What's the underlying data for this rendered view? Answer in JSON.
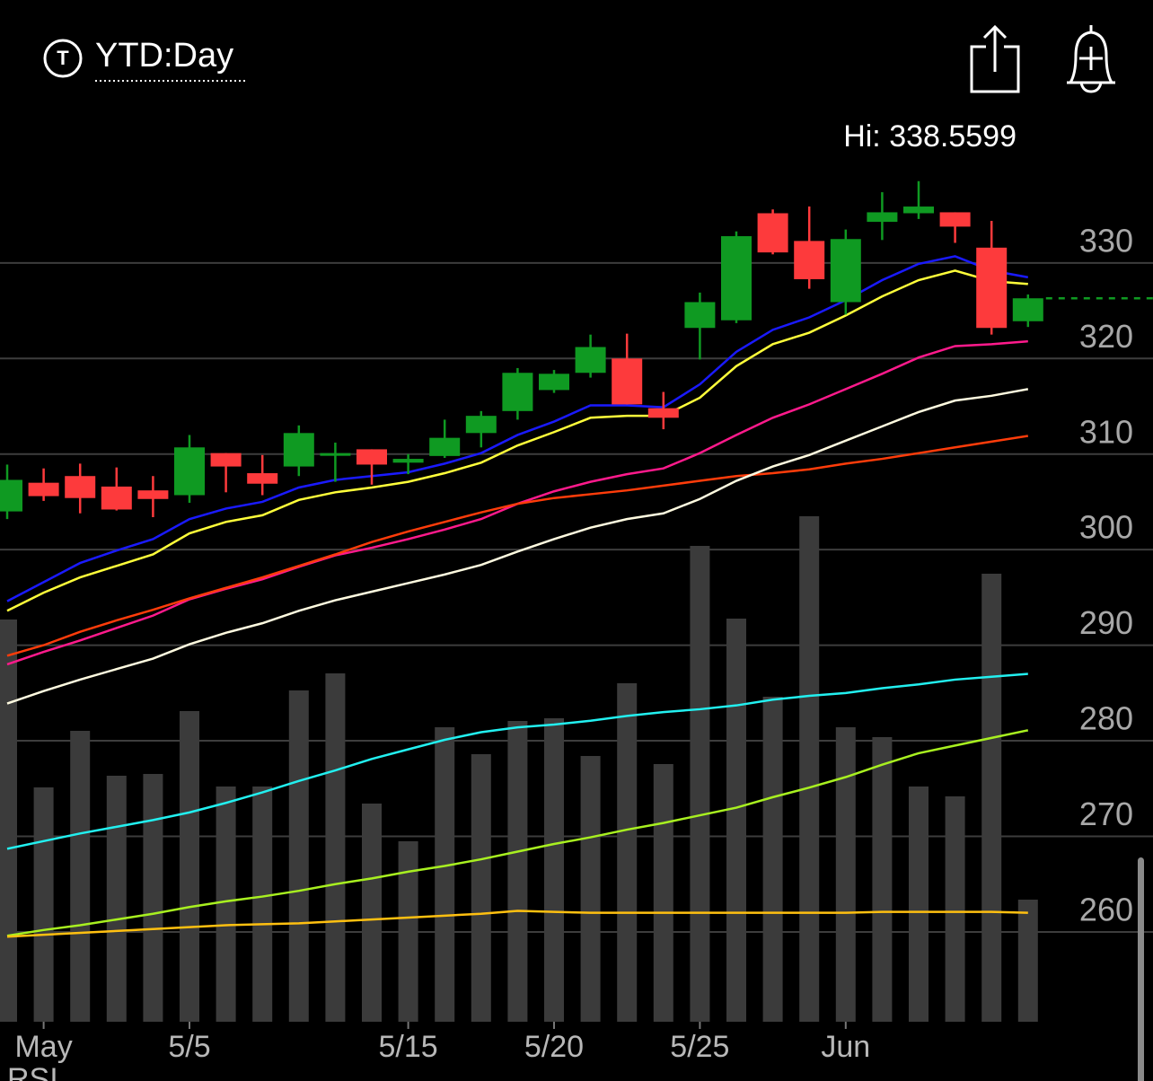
{
  "header": {
    "range": "YTD:Day"
  },
  "chart_data": {
    "type": "candlestick",
    "high_label": "Hi: 338.5599",
    "lower_panel_label": "RSI",
    "categories": [
      null,
      "May",
      null,
      null,
      null,
      "5/5",
      null,
      null,
      null,
      null,
      null,
      "5/15",
      null,
      null,
      null,
      "5/20",
      null,
      null,
      null,
      "5/25",
      null,
      null,
      null,
      "Jun",
      null,
      null,
      null,
      null,
      null
    ],
    "open": [
      304.0,
      307.0,
      307.7,
      306.6,
      306.2,
      305.7,
      310.1,
      308.0,
      308.7,
      310.0,
      310.5,
      309.1,
      309.8,
      312.2,
      314.5,
      316.7,
      318.5,
      320.0,
      314.8,
      323.2,
      324.0,
      335.2,
      332.3,
      325.9,
      334.3,
      335.2,
      335.3,
      331.6,
      323.9
    ],
    "high": [
      308.9,
      308.5,
      309.0,
      308.6,
      307.7,
      312.0,
      310.1,
      309.9,
      313.0,
      311.2,
      310.5,
      310.0,
      313.6,
      314.5,
      319.0,
      318.8,
      322.5,
      322.6,
      316.5,
      326.9,
      333.3,
      335.6,
      335.9,
      333.5,
      337.4,
      338.56,
      335.3,
      334.4,
      326.7
    ],
    "low": [
      303.2,
      305.1,
      303.8,
      304.1,
      303.4,
      304.9,
      306.0,
      305.7,
      307.7,
      307.1,
      306.8,
      307.9,
      309.6,
      310.7,
      313.6,
      316.4,
      318.0,
      315.2,
      312.6,
      319.9,
      323.7,
      330.9,
      327.3,
      324.6,
      332.4,
      334.6,
      332.1,
      322.5,
      323.3
    ],
    "close": [
      307.3,
      305.6,
      305.4,
      304.2,
      305.3,
      310.7,
      308.7,
      306.9,
      312.2,
      310.1,
      308.9,
      309.5,
      311.7,
      314.0,
      318.5,
      318.4,
      321.2,
      315.2,
      313.8,
      325.9,
      332.8,
      331.1,
      328.3,
      332.5,
      335.3,
      335.9,
      333.8,
      323.2,
      326.3
    ],
    "up_color": "#0f9a22",
    "down_color": "#fd3a3c",
    "ylim": [
      250.6,
      345.3
    ],
    "yticks": [
      260,
      270,
      280,
      290,
      300,
      310,
      320,
      330
    ],
    "grid": true,
    "last_price_line": true,
    "overlays": [
      {
        "color": "#1a1aff",
        "values": [
          294.6,
          296.6,
          298.6,
          299.9,
          301.1,
          303.2,
          304.3,
          305.0,
          306.5,
          307.3,
          307.7,
          308.1,
          309.0,
          310.1,
          312.0,
          313.4,
          315.1,
          315.1,
          314.9,
          317.3,
          320.7,
          323.0,
          324.3,
          326.1,
          328.2,
          329.9,
          330.7,
          329.2,
          328.5
        ]
      },
      {
        "color": "#ffff3a",
        "values": [
          293.6,
          295.5,
          297.1,
          298.3,
          299.5,
          301.7,
          302.9,
          303.6,
          305.2,
          306.0,
          306.5,
          307.1,
          308.0,
          309.1,
          310.9,
          312.3,
          313.8,
          314.0,
          314.0,
          315.9,
          319.2,
          321.5,
          322.7,
          324.5,
          326.5,
          328.2,
          329.2,
          328.1,
          327.8
        ]
      },
      {
        "color": "#ff1a8c",
        "values": [
          288.0,
          289.3,
          290.5,
          291.8,
          293.1,
          294.8,
          295.9,
          296.9,
          298.2,
          299.4,
          300.2,
          301.1,
          302.1,
          303.2,
          304.8,
          306.1,
          307.1,
          307.9,
          308.5,
          310.1,
          312.0,
          313.8,
          315.2,
          316.8,
          318.4,
          320.1,
          321.3,
          321.5,
          321.8
        ]
      },
      {
        "color": "#ff3c0a",
        "values": [
          288.9,
          290.0,
          291.4,
          292.6,
          293.7,
          294.9,
          296.0,
          297.1,
          298.3,
          299.5,
          300.8,
          301.9,
          302.9,
          303.9,
          304.8,
          305.4,
          305.8,
          306.2,
          306.7,
          307.2,
          307.7,
          308.0,
          308.4,
          309.0,
          309.5,
          310.1,
          310.7,
          311.3,
          311.9
        ]
      },
      {
        "color": "#fffbe0",
        "values": [
          283.9,
          285.2,
          286.4,
          287.5,
          288.6,
          290.1,
          291.3,
          292.3,
          293.6,
          294.7,
          295.6,
          296.5,
          297.4,
          298.4,
          299.8,
          301.1,
          302.3,
          303.2,
          303.8,
          305.3,
          307.2,
          308.7,
          309.9,
          311.4,
          312.9,
          314.4,
          315.6,
          316.1,
          316.8
        ]
      },
      {
        "color": "#22f0f0",
        "values": [
          268.7,
          269.5,
          270.3,
          271.0,
          271.7,
          272.5,
          273.5,
          274.6,
          275.8,
          276.9,
          278.1,
          279.1,
          280.1,
          280.9,
          281.4,
          281.7,
          282.1,
          282.6,
          283.0,
          283.3,
          283.7,
          284.3,
          284.7,
          285.0,
          285.5,
          285.9,
          286.4,
          286.7,
          287.0
        ]
      },
      {
        "color": "#a8f020",
        "values": [
          259.6,
          260.2,
          260.7,
          261.3,
          261.9,
          262.6,
          263.2,
          263.7,
          264.3,
          265.0,
          265.6,
          266.3,
          266.9,
          267.6,
          268.4,
          269.2,
          269.9,
          270.7,
          271.4,
          272.2,
          273.0,
          274.1,
          275.1,
          276.2,
          277.5,
          278.7,
          279.5,
          280.3,
          281.1
        ]
      },
      {
        "color": "#ffc010",
        "values": [
          259.5,
          259.7,
          259.9,
          260.1,
          260.3,
          260.5,
          260.7,
          260.8,
          260.9,
          261.1,
          261.3,
          261.5,
          261.7,
          261.9,
          262.2,
          262.1,
          262.0,
          262.0,
          262.0,
          262.0,
          262.0,
          262.0,
          262.0,
          262.0,
          262.1,
          262.1,
          262.1,
          262.1,
          262.0
        ]
      }
    ],
    "volume": {
      "color": "#3b3b3b",
      "vlim": [
        0,
        1000
      ],
      "values": [
        448,
        261,
        324,
        274,
        276,
        346,
        262,
        262,
        369,
        388,
        243,
        201,
        328,
        298,
        335,
        338,
        296,
        377,
        287,
        530,
        449,
        362,
        563,
        328,
        317,
        262,
        251,
        499,
        136
      ]
    }
  }
}
